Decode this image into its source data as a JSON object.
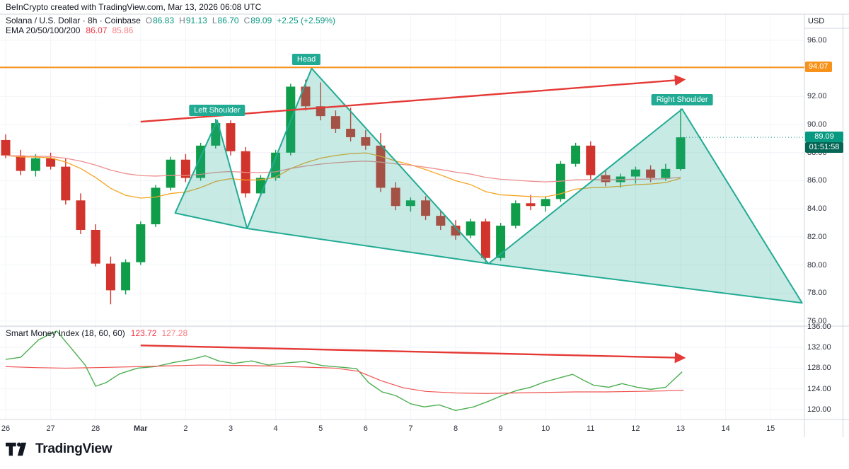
{
  "attribution": "BeInCrypto created with TradingView.com, Mar 13, 2026 06:08 UTC",
  "header": {
    "symbol_title": "Solana / U.S. Dollar · 8h · Coinbase",
    "ohlc": [
      {
        "label": "O",
        "value": "86.83"
      },
      {
        "label": "H",
        "value": "91.13"
      },
      {
        "label": "L",
        "value": "86.70"
      },
      {
        "label": "C",
        "value": "89.09"
      }
    ],
    "change": "+2.25 (+2.59%)",
    "ema_label": "EMA 20/50/100/200",
    "ema_values": [
      "86.07",
      "85.86"
    ]
  },
  "smi_header": {
    "label": "Smart Money Index (18, 60, 60)",
    "values": [
      "123.72",
      "127.28"
    ]
  },
  "axis": {
    "currency": "USD",
    "main_ticks": [
      96,
      94,
      92,
      90,
      88,
      86,
      84,
      82,
      80,
      78,
      76
    ],
    "smi_ticks": [
      136,
      132,
      128,
      124,
      120
    ]
  },
  "price_labels": {
    "hline": "94.07",
    "last": "89.09",
    "countdown": "01:51:58"
  },
  "annotations": {
    "left_shoulder": {
      "text": "Left Shoulder",
      "i": 14.1,
      "price": 91.0
    },
    "head": {
      "text": "Head",
      "i": 20.05,
      "price": 94.65
    },
    "right_shoulder": {
      "text": "Right Shoulder",
      "i": 45.1,
      "price": 91.75
    }
  },
  "time_axis": [
    {
      "label": "26",
      "i": 0
    },
    {
      "label": "27",
      "i": 3
    },
    {
      "label": "28",
      "i": 6
    },
    {
      "label": "Mar",
      "i": 9,
      "bold": true
    },
    {
      "label": "2",
      "i": 12
    },
    {
      "label": "3",
      "i": 15
    },
    {
      "label": "4",
      "i": 18
    },
    {
      "label": "5",
      "i": 21
    },
    {
      "label": "6",
      "i": 24
    },
    {
      "label": "7",
      "i": 27
    },
    {
      "label": "8",
      "i": 30
    },
    {
      "label": "9",
      "i": 33
    },
    {
      "label": "10",
      "i": 36
    },
    {
      "label": "11",
      "i": 39
    },
    {
      "label": "12",
      "i": 42
    },
    {
      "label": "13",
      "i": 45
    },
    {
      "label": "14",
      "i": 48
    },
    {
      "label": "15",
      "i": 51
    }
  ],
  "logo_text": "TradingView",
  "colors": {
    "up": "#0f9d49",
    "down": "#d0342c",
    "teal": "#22ab94",
    "pattern_fill": "rgba(34,171,148,0.25)",
    "hline": "#f7931a",
    "arrow": "#e53935",
    "ema_fast": "#f5a623",
    "ema_slow": "#ef8e8e",
    "smi_main": "#4caf50",
    "smi_signal": "#ef5350",
    "last_line": "#089981",
    "grid": "#f2f4f8",
    "border": "#d1d4dc",
    "value_green": "#089981",
    "value_red": "#f23645",
    "value_pink": "#f77e82"
  },
  "chart_data": [
    {
      "type": "candlestick",
      "title": "Solana / U.S. Dollar · 8h · Coinbase",
      "ylabel": "USD",
      "ylim": [
        75.7,
        96.35
      ],
      "x_unit": "8h candles, Feb 26 - Mar 13",
      "ohlc_display": {
        "open": 86.83,
        "high": 91.13,
        "low": 86.7,
        "close": 89.09,
        "change": "+2.25 (+2.59%)"
      },
      "ema_display": {
        "label": "EMA 20/50/100/200",
        "values": [
          86.07,
          85.86
        ],
        "periods_rendered": [
          20,
          50
        ]
      },
      "candles": [
        [
          88.9,
          89.3,
          87.6,
          87.8
        ],
        [
          87.8,
          88.2,
          86.4,
          86.7
        ],
        [
          86.7,
          87.9,
          86.3,
          87.6
        ],
        [
          87.6,
          88.0,
          86.8,
          87.0
        ],
        [
          87.0,
          87.6,
          84.3,
          84.6
        ],
        [
          84.6,
          85.1,
          82.2,
          82.5
        ],
        [
          82.5,
          82.9,
          79.9,
          80.1
        ],
        [
          80.1,
          80.6,
          77.2,
          78.2
        ],
        [
          78.2,
          80.4,
          77.9,
          80.2
        ],
        [
          80.2,
          83.1,
          80.0,
          82.9
        ],
        [
          82.9,
          85.7,
          82.7,
          85.5
        ],
        [
          85.5,
          87.7,
          85.3,
          87.5
        ],
        [
          87.5,
          87.9,
          85.9,
          86.2
        ],
        [
          86.2,
          88.7,
          86.0,
          88.5
        ],
        [
          88.5,
          90.4,
          88.3,
          90.1
        ],
        [
          90.1,
          90.3,
          87.8,
          88.1
        ],
        [
          88.1,
          88.4,
          84.8,
          85.1
        ],
        [
          85.1,
          86.4,
          84.9,
          86.2
        ],
        [
          86.2,
          88.2,
          86.0,
          88.0
        ],
        [
          88.0,
          92.9,
          87.8,
          92.7
        ],
        [
          92.7,
          93.2,
          91.0,
          91.3
        ],
        [
          91.3,
          93.0,
          90.3,
          90.6
        ],
        [
          90.6,
          91.0,
          89.4,
          89.7
        ],
        [
          89.7,
          91.2,
          88.8,
          89.1
        ],
        [
          89.1,
          89.6,
          88.2,
          88.5
        ],
        [
          88.5,
          89.4,
          85.2,
          85.5
        ],
        [
          85.5,
          85.9,
          83.9,
          84.2
        ],
        [
          84.2,
          84.8,
          83.8,
          84.6
        ],
        [
          84.6,
          84.9,
          83.2,
          83.5
        ],
        [
          83.5,
          83.9,
          82.5,
          82.8
        ],
        [
          82.8,
          83.2,
          81.8,
          82.1
        ],
        [
          82.1,
          83.3,
          81.9,
          83.1
        ],
        [
          83.1,
          83.3,
          80.2,
          80.5
        ],
        [
          80.5,
          83.0,
          80.3,
          82.8
        ],
        [
          82.8,
          84.6,
          82.6,
          84.4
        ],
        [
          84.4,
          85.0,
          83.9,
          84.2
        ],
        [
          84.2,
          84.9,
          83.8,
          84.7
        ],
        [
          84.7,
          87.4,
          84.5,
          87.2
        ],
        [
          87.2,
          88.7,
          87.0,
          88.5
        ],
        [
          88.5,
          88.8,
          86.1,
          86.4
        ],
        [
          86.4,
          86.8,
          85.6,
          85.9
        ],
        [
          85.9,
          86.5,
          85.5,
          86.3
        ],
        [
          86.3,
          87.0,
          85.8,
          86.8
        ],
        [
          86.8,
          87.1,
          85.9,
          86.2
        ],
        [
          86.2,
          87.2,
          86.0,
          86.84
        ],
        [
          86.83,
          91.13,
          86.7,
          89.09
        ]
      ],
      "horizontal_line": {
        "price": 94.07
      },
      "last_price": {
        "value": 89.09,
        "countdown": "01:51:58"
      },
      "pattern": {
        "name": "head-and-shoulders",
        "labels": [
          "Left Shoulder",
          "Head",
          "Right Shoulder"
        ],
        "points": [
          [
            11.3,
            83.7
          ],
          [
            14.1,
            90.3
          ],
          [
            16.1,
            82.6
          ],
          [
            20.4,
            94.0
          ],
          [
            32.2,
            80.1
          ],
          [
            45.1,
            91.1
          ],
          [
            53.1,
            77.3
          ]
        ]
      },
      "trend_arrow": {
        "from": [
          9.0,
          90.2
        ],
        "to": [
          45.2,
          93.2
        ]
      }
    },
    {
      "type": "line",
      "title": "Smart Money Index (18, 60, 60)",
      "ylim": [
        118.2,
        136.0
      ],
      "last_values": [
        123.72,
        127.28
      ],
      "series": [
        {
          "name": "SMI",
          "points": [
            [
              0,
              129.7
            ],
            [
              1,
              130.1
            ],
            [
              2.2,
              133.5
            ],
            [
              3.4,
              135.2
            ],
            [
              4.3,
              132.1
            ],
            [
              5.3,
              128.6
            ],
            [
              6,
              124.5
            ],
            [
              6.7,
              125.2
            ],
            [
              7.6,
              126.9
            ],
            [
              8.8,
              128.0
            ],
            [
              10,
              128.3
            ],
            [
              11.2,
              129.1
            ],
            [
              12.4,
              129.7
            ],
            [
              13.3,
              130.4
            ],
            [
              14.2,
              129.4
            ],
            [
              15.2,
              128.9
            ],
            [
              16.4,
              129.4
            ],
            [
              17.5,
              128.6
            ],
            [
              18.7,
              129.0
            ],
            [
              19.9,
              129.3
            ],
            [
              21.1,
              128.5
            ],
            [
              22.3,
              128.2
            ],
            [
              23.4,
              127.9
            ],
            [
              24.2,
              125.2
            ],
            [
              25.1,
              123.4
            ],
            [
              26,
              122.7
            ],
            [
              27,
              121.1
            ],
            [
              27.9,
              120.5
            ],
            [
              28.9,
              120.9
            ],
            [
              30,
              119.8
            ],
            [
              31.2,
              120.5
            ],
            [
              32.2,
              121.6
            ],
            [
              33.1,
              122.7
            ],
            [
              34.1,
              123.7
            ],
            [
              35,
              124.3
            ],
            [
              35.9,
              125.3
            ],
            [
              36.9,
              126.1
            ],
            [
              37.8,
              126.8
            ],
            [
              38.5,
              125.7
            ],
            [
              39.2,
              124.7
            ],
            [
              40.2,
              124.3
            ],
            [
              41.1,
              125.0
            ],
            [
              42.1,
              124.3
            ],
            [
              43,
              123.9
            ],
            [
              44,
              124.3
            ],
            [
              45.1,
              127.28
            ]
          ]
        },
        {
          "name": "Signal",
          "points": [
            [
              0,
              128.3
            ],
            [
              2,
              128.1
            ],
            [
              4,
              128.0
            ],
            [
              6,
              128.1
            ],
            [
              9,
              128.3
            ],
            [
              13,
              128.6
            ],
            [
              16,
              128.5
            ],
            [
              18,
              128.4
            ],
            [
              20,
              128.2
            ],
            [
              22,
              128.0
            ],
            [
              23.5,
              127.4
            ],
            [
              25,
              125.6
            ],
            [
              26.5,
              124.2
            ],
            [
              28,
              123.5
            ],
            [
              30,
              123.2
            ],
            [
              32,
              123.1
            ],
            [
              34,
              123.2
            ],
            [
              36,
              123.3
            ],
            [
              38,
              123.4
            ],
            [
              40,
              123.4
            ],
            [
              42,
              123.5
            ],
            [
              44,
              123.6
            ],
            [
              45.2,
              123.72
            ]
          ]
        }
      ],
      "trend_arrow": {
        "from": [
          9.0,
          132.4
        ],
        "to": [
          45.2,
          130.0
        ]
      }
    }
  ]
}
